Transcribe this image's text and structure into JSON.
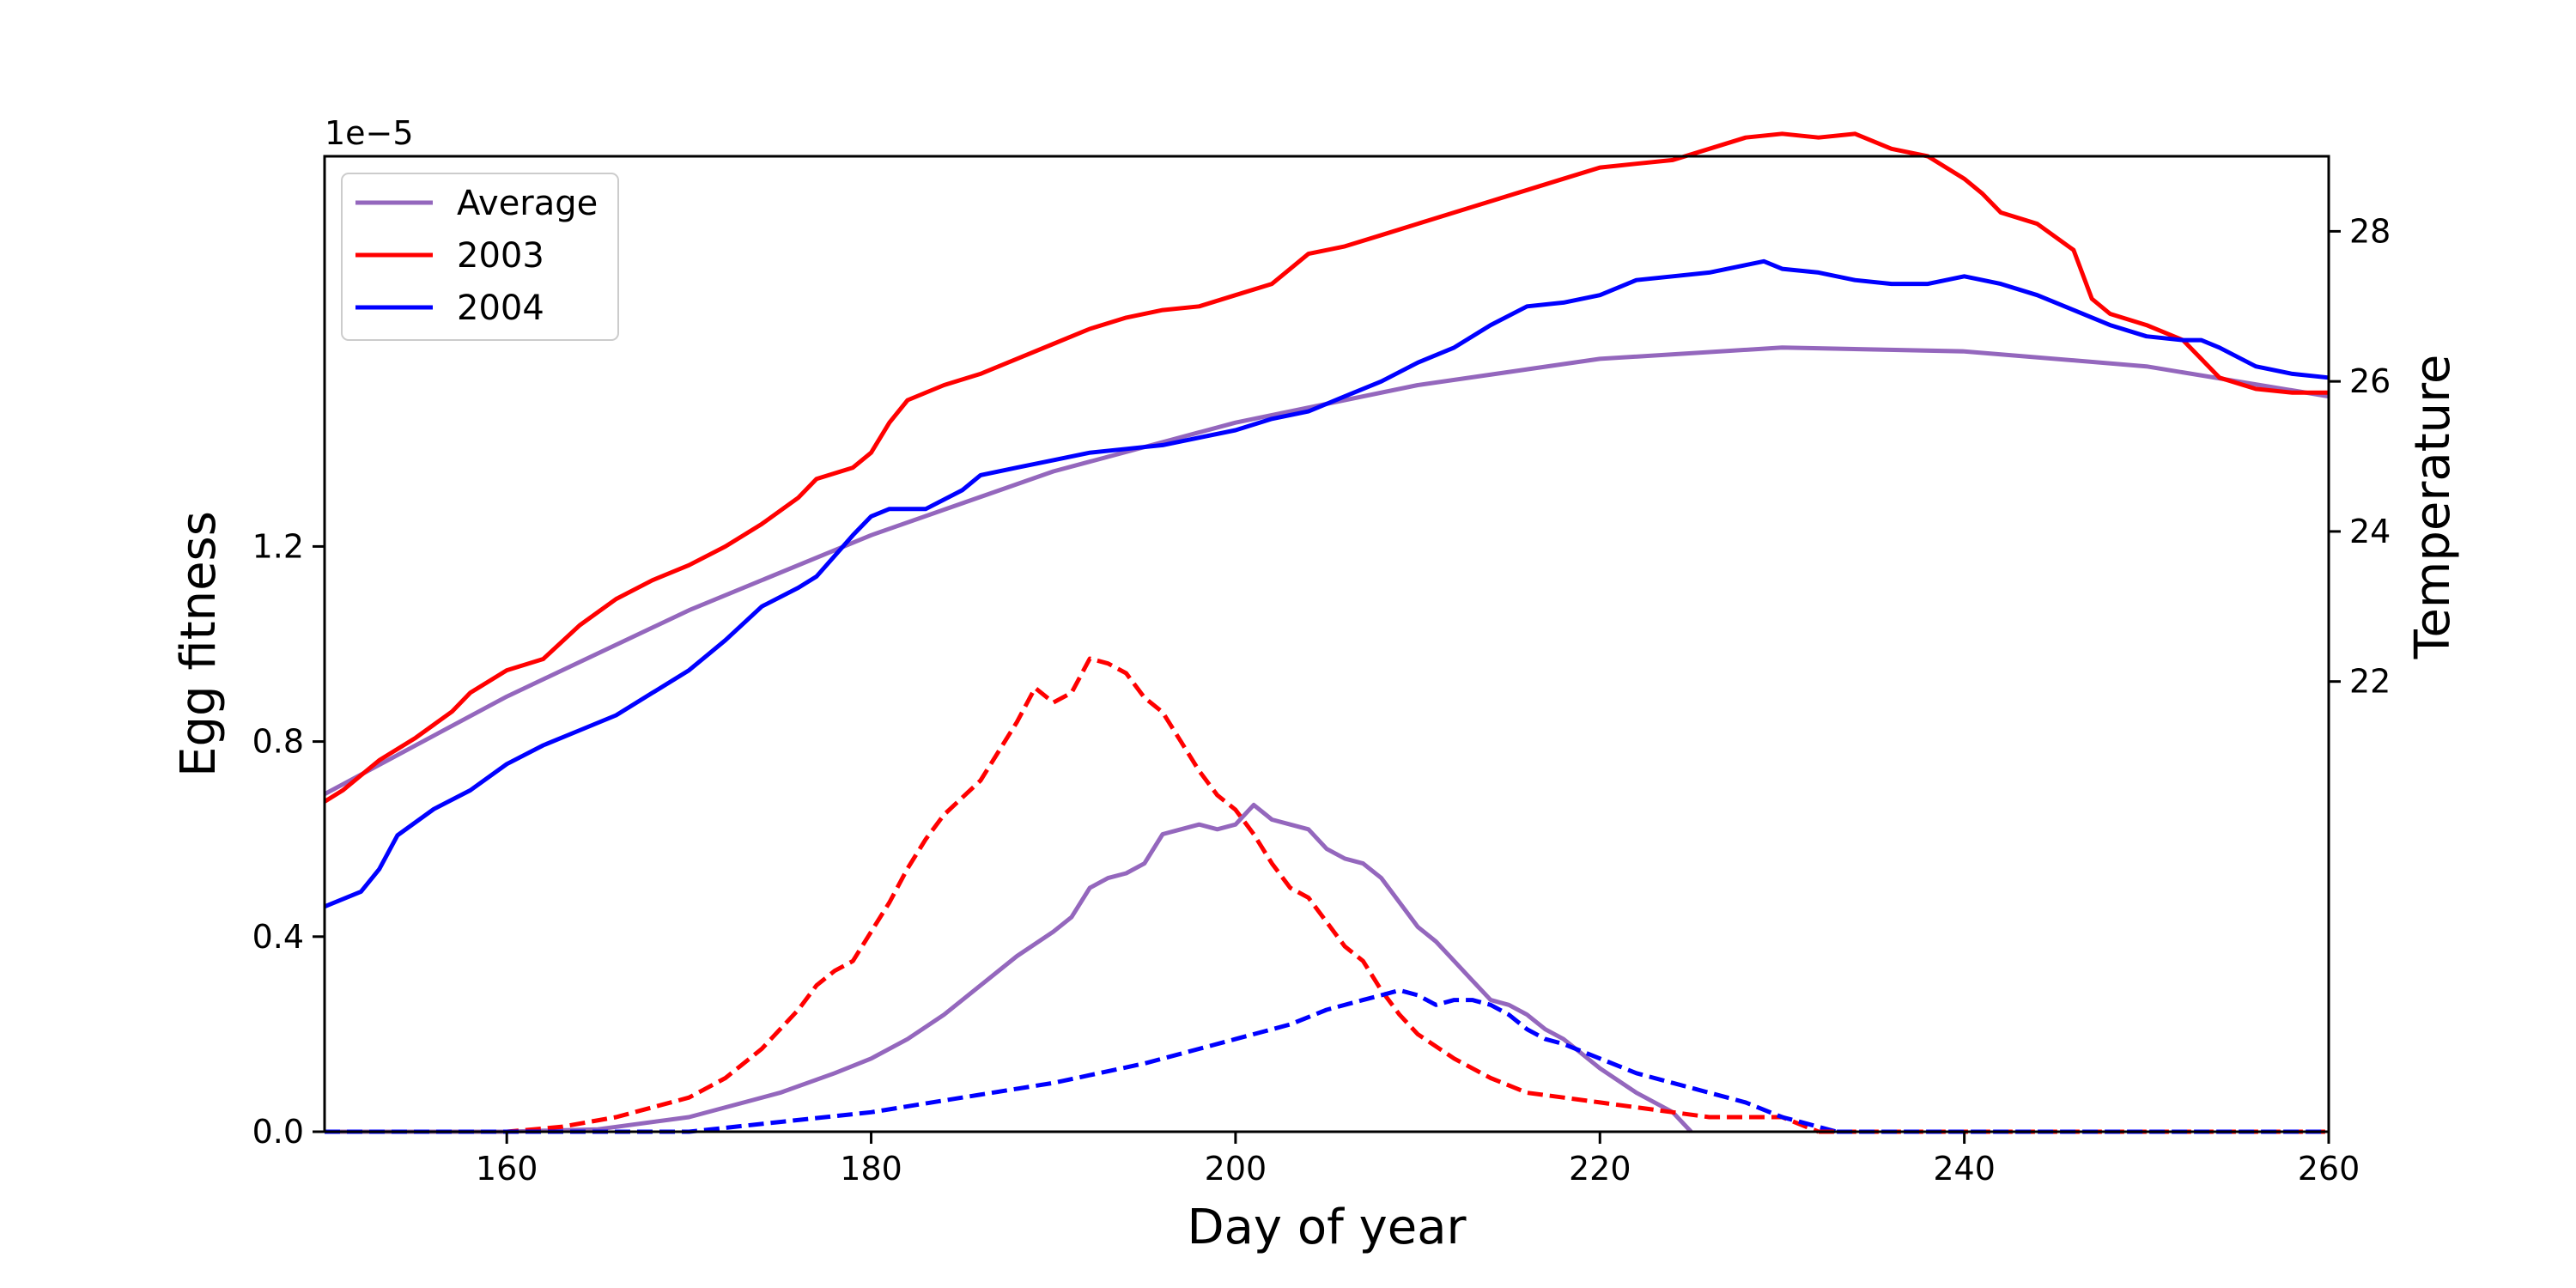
{
  "chart_data": {
    "type": "line",
    "xlabel": "Day of year",
    "ylabel": "Egg fitness",
    "y2label": "Temperature",
    "y_offset_label": "1e−5",
    "xlim": [
      150,
      260
    ],
    "ylim": [
      0.0,
      2.0
    ],
    "y2lim": [
      16.0,
      29.0
    ],
    "xticks": [
      160,
      180,
      200,
      220,
      240,
      260
    ],
    "yticks": [
      0.0,
      0.4,
      0.8,
      1.2
    ],
    "y2ticks": [
      22,
      24,
      26,
      28
    ],
    "grid": false,
    "legend_position": "top-left",
    "legend": [
      {
        "label": "Average",
        "color": "#9467bd"
      },
      {
        "label": "2003",
        "color": "#ff0000"
      },
      {
        "label": "2004",
        "color": "#0000ff"
      }
    ],
    "series": [
      {
        "name": "Average",
        "axis": "temperature",
        "style": "solid",
        "color": "#9467bd",
        "x": [
          150,
          160,
          170,
          180,
          190,
          200,
          210,
          220,
          230,
          240,
          250,
          260
        ],
        "y": [
          20.5,
          21.8,
          22.95,
          23.95,
          24.8,
          25.45,
          25.95,
          26.3,
          26.45,
          26.4,
          26.2,
          25.8
        ]
      },
      {
        "name": "2003",
        "axis": "temperature",
        "style": "solid",
        "color": "#ff0000",
        "x": [
          150,
          151,
          153,
          155,
          157,
          158,
          160,
          162,
          164,
          166,
          168,
          170,
          172,
          174,
          176,
          177,
          179,
          180,
          181,
          182,
          184,
          186,
          188,
          190,
          192,
          194,
          196,
          198,
          200,
          202,
          203,
          204,
          206,
          208,
          210,
          212,
          214,
          216,
          218,
          220,
          222,
          224,
          226,
          228,
          230,
          232,
          234,
          236,
          238,
          239,
          240,
          241,
          242,
          244,
          246,
          247,
          248,
          250,
          252,
          253,
          254,
          256,
          258,
          260
        ],
        "y": [
          20.4,
          20.55,
          20.95,
          21.25,
          21.6,
          21.85,
          22.15,
          22.3,
          22.75,
          23.1,
          23.35,
          23.55,
          23.8,
          24.1,
          24.45,
          24.7,
          24.85,
          25.05,
          25.45,
          25.75,
          25.95,
          26.1,
          26.3,
          26.5,
          26.7,
          26.85,
          26.95,
          27.0,
          27.15,
          27.3,
          27.5,
          27.7,
          27.8,
          27.95,
          28.1,
          28.25,
          28.4,
          28.55,
          28.7,
          28.85,
          28.9,
          28.95,
          29.1,
          29.25,
          29.3,
          29.25,
          29.3,
          29.1,
          29.0,
          28.85,
          28.7,
          28.5,
          28.25,
          28.1,
          27.75,
          27.1,
          26.9,
          26.75,
          26.55,
          26.3,
          26.05,
          25.9,
          25.85,
          25.85
        ]
      },
      {
        "name": "2004",
        "axis": "temperature",
        "style": "solid",
        "color": "#0000ff",
        "x": [
          150,
          152,
          153,
          154,
          156,
          158,
          160,
          162,
          164,
          166,
          168,
          170,
          172,
          174,
          176,
          177,
          179,
          180,
          181,
          183,
          185,
          186,
          188,
          190,
          192,
          194,
          196,
          198,
          200,
          202,
          204,
          206,
          208,
          210,
          212,
          214,
          216,
          218,
          220,
          222,
          224,
          226,
          228,
          229,
          230,
          232,
          234,
          236,
          238,
          239,
          240,
          241,
          242,
          244,
          246,
          248,
          250,
          252,
          253,
          254,
          256,
          258,
          260
        ],
        "y": [
          19.0,
          19.2,
          19.5,
          19.95,
          20.3,
          20.55,
          20.9,
          21.15,
          21.35,
          21.55,
          21.85,
          22.15,
          22.55,
          23.0,
          23.25,
          23.4,
          23.95,
          24.2,
          24.3,
          24.3,
          24.55,
          24.75,
          24.85,
          24.95,
          25.05,
          25.1,
          25.15,
          25.25,
          25.35,
          25.5,
          25.6,
          25.8,
          26.0,
          26.25,
          26.45,
          26.75,
          27.0,
          27.05,
          27.15,
          27.35,
          27.4,
          27.45,
          27.55,
          27.6,
          27.5,
          27.45,
          27.35,
          27.3,
          27.3,
          27.35,
          27.4,
          27.35,
          27.3,
          27.15,
          26.95,
          26.75,
          26.6,
          26.55,
          26.55,
          26.45,
          26.2,
          26.1,
          26.05
        ]
      },
      {
        "name": "Average",
        "axis": "fitness",
        "style": "solid",
        "color": "#9467bd",
        "x": [
          150,
          160,
          165,
          170,
          175,
          178,
          180,
          182,
          184,
          186,
          188,
          190,
          191,
          192,
          193,
          194,
          195,
          196,
          197,
          198,
          199,
          200,
          201,
          202,
          203,
          204,
          205,
          206,
          207,
          208,
          209,
          210,
          211,
          212,
          213,
          214,
          215,
          216,
          217,
          218,
          219,
          220,
          222,
          224,
          225
        ],
        "y": [
          0.0,
          0.0,
          0.005,
          0.03,
          0.08,
          0.12,
          0.15,
          0.19,
          0.24,
          0.3,
          0.36,
          0.41,
          0.44,
          0.5,
          0.52,
          0.53,
          0.55,
          0.61,
          0.62,
          0.63,
          0.62,
          0.63,
          0.67,
          0.64,
          0.63,
          0.62,
          0.58,
          0.56,
          0.55,
          0.52,
          0.47,
          0.42,
          0.39,
          0.35,
          0.31,
          0.27,
          0.26,
          0.24,
          0.21,
          0.19,
          0.16,
          0.13,
          0.08,
          0.04,
          0.0
        ]
      },
      {
        "name": "2003",
        "axis": "fitness",
        "style": "dashed",
        "color": "#ff0000",
        "x": [
          150,
          160,
          163,
          166,
          168,
          170,
          172,
          174,
          176,
          177,
          178,
          179,
          180,
          181,
          182,
          183,
          184,
          186,
          187,
          188,
          189,
          190,
          191,
          192,
          193,
          194,
          195,
          196,
          197,
          198,
          199,
          200,
          201,
          202,
          203,
          204,
          205,
          206,
          207,
          208,
          209,
          210,
          212,
          214,
          216,
          218,
          220,
          222,
          224,
          226,
          228,
          230,
          232
        ],
        "y": [
          0.0,
          0.0,
          0.01,
          0.03,
          0.05,
          0.07,
          0.11,
          0.17,
          0.25,
          0.3,
          0.33,
          0.35,
          0.41,
          0.47,
          0.54,
          0.6,
          0.65,
          0.72,
          0.78,
          0.84,
          0.91,
          0.88,
          0.9,
          0.97,
          0.96,
          0.94,
          0.89,
          0.86,
          0.8,
          0.74,
          0.69,
          0.66,
          0.61,
          0.55,
          0.5,
          0.48,
          0.43,
          0.38,
          0.35,
          0.29,
          0.24,
          0.2,
          0.15,
          0.11,
          0.08,
          0.07,
          0.06,
          0.05,
          0.04,
          0.03,
          0.03,
          0.03,
          0.0
        ]
      },
      {
        "name": "2004",
        "axis": "fitness",
        "style": "dashed",
        "color": "#0000ff",
        "x": [
          150,
          170,
          175,
          180,
          185,
          190,
          195,
          200,
          203,
          205,
          207,
          208,
          209,
          210,
          211,
          212,
          213,
          214,
          215,
          216,
          217,
          218,
          220,
          222,
          224,
          226,
          228,
          230,
          231,
          232,
          233
        ],
        "y": [
          0.0,
          0.0,
          0.02,
          0.04,
          0.07,
          0.1,
          0.14,
          0.19,
          0.22,
          0.25,
          0.27,
          0.28,
          0.29,
          0.28,
          0.26,
          0.27,
          0.27,
          0.26,
          0.24,
          0.21,
          0.19,
          0.18,
          0.15,
          0.12,
          0.1,
          0.08,
          0.06,
          0.03,
          0.02,
          0.01,
          0.0
        ]
      }
    ]
  }
}
